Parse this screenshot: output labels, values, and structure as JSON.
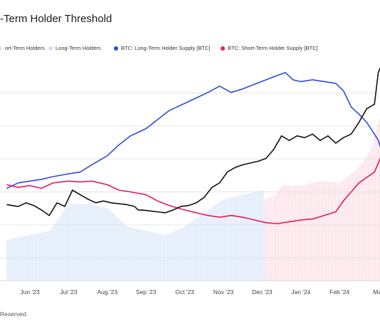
{
  "title": "-Term Holder Threshold",
  "footer": "Reserved.",
  "legend": [
    {
      "label": "ort-Term Holders",
      "color": "#f9d6dd"
    },
    {
      "label": "Long-Term Holders",
      "color": "#cfe0f6"
    },
    {
      "label": "BTC: Long-Term Holder Supply [BTC]",
      "color": "#2f4bdb"
    },
    {
      "label": "BTC: Short-Term Holder Supply [BTC]",
      "color": "#e8185b"
    }
  ],
  "chart_data": {
    "type": "line",
    "title": "-Term Holder Threshold",
    "categories": [
      "Jun '23",
      "Jul '23",
      "Aug '23",
      "Sep '23",
      "Oct '23",
      "Nov '23",
      "Dec '23",
      "Jan '24",
      "Feb '24",
      "Mar"
    ],
    "grid": true,
    "background_bars": [
      {
        "name": "ort-Term Holders",
        "color": "#f9d6dd",
        "x_range": [
          6.05,
          9.1
        ],
        "values": [
          {
            "x": 6.05,
            "y": 0.9
          },
          {
            "x": 6.3,
            "y": 0.93
          },
          {
            "x": 6.5,
            "y": 1.05
          },
          {
            "x": 7.0,
            "y": 1.05
          },
          {
            "x": 7.5,
            "y": 1.1
          },
          {
            "x": 8.0,
            "y": 1.08
          },
          {
            "x": 8.5,
            "y": 1.25
          },
          {
            "x": 8.8,
            "y": 1.45
          },
          {
            "x": 9.1,
            "y": 1.9
          }
        ]
      },
      {
        "name": "Long-Term Holders",
        "color": "#cfe0f6",
        "x_range": [
          -0.6,
          6.05
        ],
        "values": [
          {
            "x": -0.6,
            "y": 0.45
          },
          {
            "x": 0.5,
            "y": 0.55
          },
          {
            "x": 1.0,
            "y": 0.85
          },
          {
            "x": 1.5,
            "y": 0.85
          },
          {
            "x": 2.0,
            "y": 0.8
          },
          {
            "x": 2.5,
            "y": 0.6
          },
          {
            "x": 3.0,
            "y": 0.55
          },
          {
            "x": 3.5,
            "y": 0.5
          },
          {
            "x": 4.0,
            "y": 0.6
          },
          {
            "x": 4.5,
            "y": 0.75
          },
          {
            "x": 5.0,
            "y": 0.9
          },
          {
            "x": 5.5,
            "y": 0.95
          },
          {
            "x": 6.05,
            "y": 1.0
          }
        ]
      }
    ],
    "series": [
      {
        "name": "BTC: Long-Term Holder Supply [BTC]",
        "color": "#2f4bdb",
        "values": [
          {
            "x": -0.6,
            "y": 1.02
          },
          {
            "x": -0.3,
            "y": 1.08
          },
          {
            "x": 0.0,
            "y": 1.1
          },
          {
            "x": 0.3,
            "y": 1.12
          },
          {
            "x": 0.6,
            "y": 1.15
          },
          {
            "x": 1.0,
            "y": 1.18
          },
          {
            "x": 1.3,
            "y": 1.2
          },
          {
            "x": 1.6,
            "y": 1.28
          },
          {
            "x": 2.0,
            "y": 1.38
          },
          {
            "x": 2.3,
            "y": 1.5
          },
          {
            "x": 2.6,
            "y": 1.6
          },
          {
            "x": 3.0,
            "y": 1.68
          },
          {
            "x": 3.3,
            "y": 1.78
          },
          {
            "x": 3.6,
            "y": 1.88
          },
          {
            "x": 4.0,
            "y": 1.96
          },
          {
            "x": 4.3,
            "y": 2.02
          },
          {
            "x": 4.6,
            "y": 2.08
          },
          {
            "x": 4.9,
            "y": 2.15
          },
          {
            "x": 5.2,
            "y": 2.08
          },
          {
            "x": 5.5,
            "y": 2.12
          },
          {
            "x": 5.8,
            "y": 2.17
          },
          {
            "x": 6.1,
            "y": 2.22
          },
          {
            "x": 6.4,
            "y": 2.27
          },
          {
            "x": 6.6,
            "y": 2.3
          },
          {
            "x": 6.8,
            "y": 2.22
          },
          {
            "x": 7.0,
            "y": 2.2
          },
          {
            "x": 7.3,
            "y": 2.22
          },
          {
            "x": 7.6,
            "y": 2.2
          },
          {
            "x": 7.9,
            "y": 2.18
          },
          {
            "x": 8.1,
            "y": 2.1
          },
          {
            "x": 8.3,
            "y": 1.92
          },
          {
            "x": 8.5,
            "y": 1.84
          },
          {
            "x": 8.7,
            "y": 1.75
          },
          {
            "x": 8.9,
            "y": 1.62
          },
          {
            "x": 9.0,
            "y": 1.55
          },
          {
            "x": 9.1,
            "y": 1.42
          }
        ]
      },
      {
        "name": "BTC: Short-Term Holder Supply [BTC]",
        "color": "#e8185b",
        "values": [
          {
            "x": -0.6,
            "y": 1.06
          },
          {
            "x": -0.3,
            "y": 1.03
          },
          {
            "x": 0.0,
            "y": 1.05
          },
          {
            "x": 0.3,
            "y": 1.02
          },
          {
            "x": 0.6,
            "y": 1.08
          },
          {
            "x": 1.0,
            "y": 1.1
          },
          {
            "x": 1.3,
            "y": 1.09
          },
          {
            "x": 1.6,
            "y": 1.1
          },
          {
            "x": 2.0,
            "y": 1.06
          },
          {
            "x": 2.3,
            "y": 1.0
          },
          {
            "x": 2.6,
            "y": 0.98
          },
          {
            "x": 3.0,
            "y": 0.95
          },
          {
            "x": 3.3,
            "y": 0.88
          },
          {
            "x": 3.6,
            "y": 0.83
          },
          {
            "x": 4.0,
            "y": 0.78
          },
          {
            "x": 4.3,
            "y": 0.75
          },
          {
            "x": 4.6,
            "y": 0.72
          },
          {
            "x": 4.9,
            "y": 0.7
          },
          {
            "x": 5.2,
            "y": 0.72
          },
          {
            "x": 5.5,
            "y": 0.7
          },
          {
            "x": 5.8,
            "y": 0.67
          },
          {
            "x": 6.1,
            "y": 0.64
          },
          {
            "x": 6.4,
            "y": 0.63
          },
          {
            "x": 6.7,
            "y": 0.65
          },
          {
            "x": 7.0,
            "y": 0.67
          },
          {
            "x": 7.3,
            "y": 0.68
          },
          {
            "x": 7.6,
            "y": 0.72
          },
          {
            "x": 7.9,
            "y": 0.76
          },
          {
            "x": 8.1,
            "y": 0.88
          },
          {
            "x": 8.3,
            "y": 0.98
          },
          {
            "x": 8.5,
            "y": 1.08
          },
          {
            "x": 8.7,
            "y": 1.14
          },
          {
            "x": 8.9,
            "y": 1.2
          },
          {
            "x": 9.0,
            "y": 1.3
          },
          {
            "x": 9.1,
            "y": 1.4
          }
        ]
      },
      {
        "name": "",
        "color": "#111111",
        "values": [
          {
            "x": -0.6,
            "y": 0.84
          },
          {
            "x": -0.3,
            "y": 0.82
          },
          {
            "x": -0.1,
            "y": 0.86
          },
          {
            "x": 0.1,
            "y": 0.83
          },
          {
            "x": 0.3,
            "y": 0.78
          },
          {
            "x": 0.5,
            "y": 0.72
          },
          {
            "x": 0.7,
            "y": 0.86
          },
          {
            "x": 0.9,
            "y": 0.82
          },
          {
            "x": 1.1,
            "y": 1.0
          },
          {
            "x": 1.3,
            "y": 0.95
          },
          {
            "x": 1.5,
            "y": 0.9
          },
          {
            "x": 1.7,
            "y": 0.86
          },
          {
            "x": 1.9,
            "y": 0.88
          },
          {
            "x": 2.1,
            "y": 0.86
          },
          {
            "x": 2.3,
            "y": 0.85
          },
          {
            "x": 2.5,
            "y": 0.84
          },
          {
            "x": 2.7,
            "y": 0.82
          },
          {
            "x": 2.8,
            "y": 0.78
          },
          {
            "x": 2.9,
            "y": 0.78
          },
          {
            "x": 3.1,
            "y": 0.77
          },
          {
            "x": 3.3,
            "y": 0.76
          },
          {
            "x": 3.5,
            "y": 0.75
          },
          {
            "x": 3.7,
            "y": 0.78
          },
          {
            "x": 3.9,
            "y": 0.82
          },
          {
            "x": 4.1,
            "y": 0.83
          },
          {
            "x": 4.3,
            "y": 0.86
          },
          {
            "x": 4.5,
            "y": 0.92
          },
          {
            "x": 4.7,
            "y": 1.03
          },
          {
            "x": 4.9,
            "y": 1.08
          },
          {
            "x": 5.1,
            "y": 1.2
          },
          {
            "x": 5.3,
            "y": 1.25
          },
          {
            "x": 5.5,
            "y": 1.28
          },
          {
            "x": 5.7,
            "y": 1.3
          },
          {
            "x": 5.9,
            "y": 1.32
          },
          {
            "x": 6.1,
            "y": 1.35
          },
          {
            "x": 6.3,
            "y": 1.45
          },
          {
            "x": 6.5,
            "y": 1.6
          },
          {
            "x": 6.7,
            "y": 1.55
          },
          {
            "x": 6.9,
            "y": 1.6
          },
          {
            "x": 7.1,
            "y": 1.58
          },
          {
            "x": 7.3,
            "y": 1.62
          },
          {
            "x": 7.5,
            "y": 1.55
          },
          {
            "x": 7.7,
            "y": 1.6
          },
          {
            "x": 7.9,
            "y": 1.52
          },
          {
            "x": 8.1,
            "y": 1.58
          },
          {
            "x": 8.3,
            "y": 1.62
          },
          {
            "x": 8.5,
            "y": 1.75
          },
          {
            "x": 8.7,
            "y": 1.9
          },
          {
            "x": 8.9,
            "y": 1.95
          },
          {
            "x": 9.0,
            "y": 2.3
          },
          {
            "x": 9.1,
            "y": 2.4
          }
        ]
      }
    ]
  }
}
